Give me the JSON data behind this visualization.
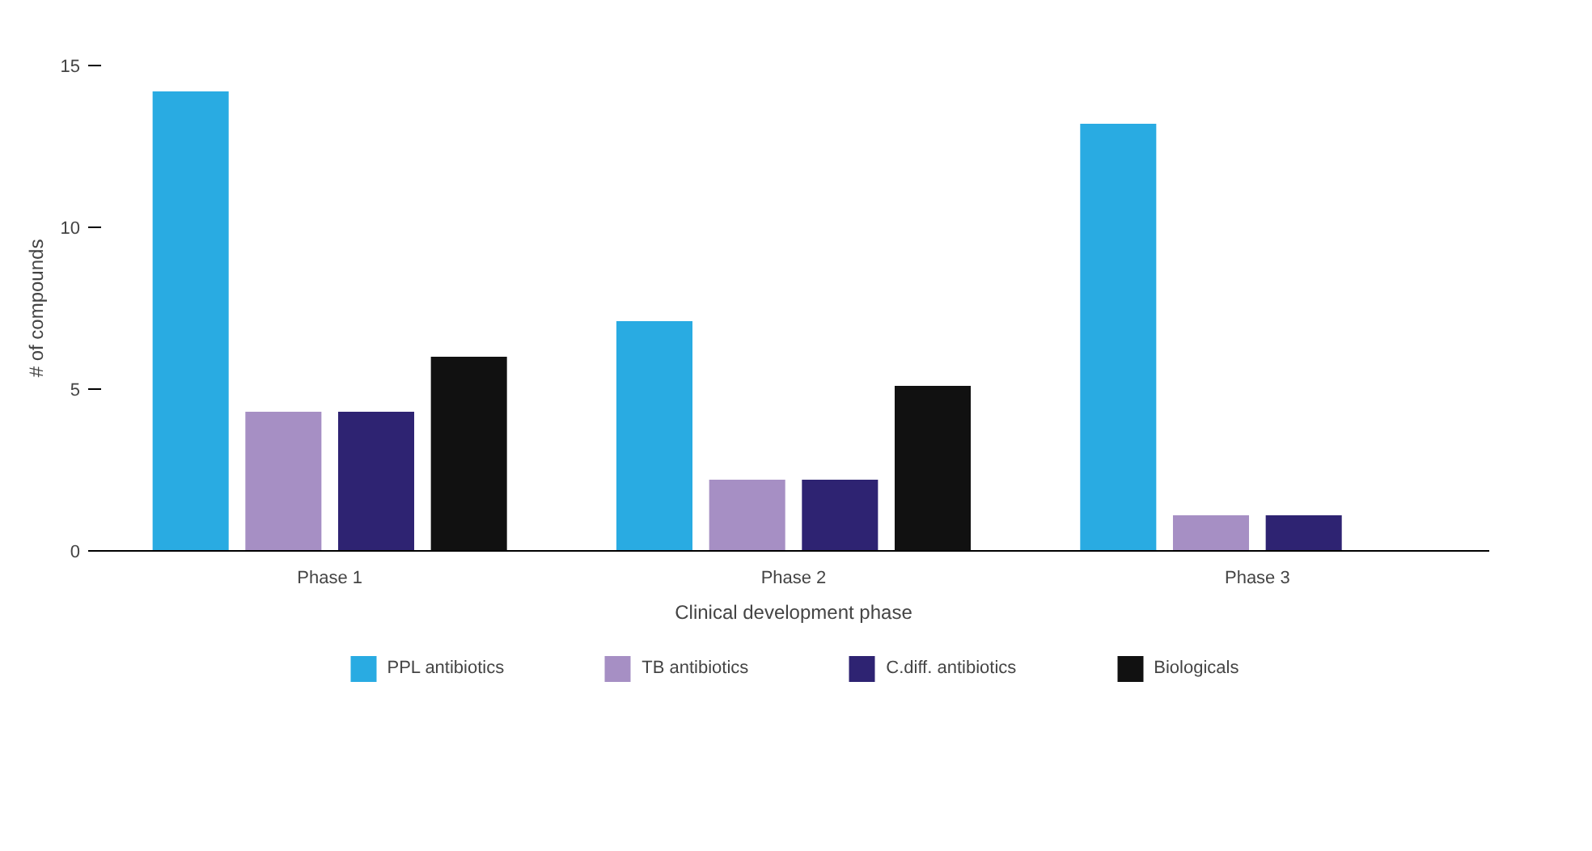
{
  "chart_data": {
    "type": "bar",
    "xlabel": "Clinical development phase",
    "ylabel": "# of compounds",
    "categories": [
      "Phase 1",
      "Phase 2",
      "Phase 3"
    ],
    "series": [
      {
        "name": "PPL antibiotics",
        "color": "#29abe2",
        "values": [
          14.2,
          7.1,
          13.2
        ]
      },
      {
        "name": "TB antibiotics",
        "color": "#a68fc4",
        "values": [
          4.3,
          2.2,
          1.1
        ]
      },
      {
        "name": "C.diff. antibiotics",
        "color": "#2e2372",
        "values": [
          4.3,
          2.2,
          1.1
        ]
      },
      {
        "name": "Biologicals",
        "color": "#111111",
        "values": [
          6.0,
          5.1,
          null
        ]
      }
    ],
    "ylim": [
      0,
      15
    ],
    "yticks": [
      0,
      5,
      10,
      15
    ],
    "grid": false,
    "legend": "bottom"
  }
}
